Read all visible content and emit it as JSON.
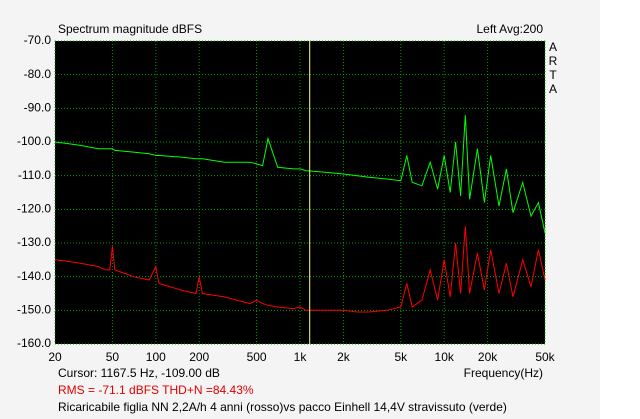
{
  "chart_data": {
    "type": "line",
    "title": "Spectrum magnitude dBFS",
    "channel_label": "Left  Avg:200",
    "logo": [
      "A",
      "R",
      "T",
      "A"
    ],
    "xlabel": "Frequency(Hz)",
    "cursor_text": "Cursor:  1167.5 Hz, -109.00 dB",
    "cursor_x": 1167.5,
    "cursor_color": "#ffff80",
    "rms_text": "RMS =  -71.1 dBFS    THD+N =84.43%",
    "caption": "Ricaricabile figlia NN 2,2A/h 4 anni (rosso)vs pacco Einhell 14,4V stravissuto (verde)",
    "xscale": "log",
    "grid": true,
    "xlim": [
      20,
      50000
    ],
    "ylim": [
      -160,
      -70
    ],
    "xticks": [
      20,
      50,
      100,
      200,
      500,
      {
        "value": 1000,
        "label": "1k"
      },
      {
        "value": 2000,
        "label": "2k"
      },
      {
        "value": 5000,
        "label": "5k"
      },
      {
        "value": 10000,
        "label": "10k"
      },
      {
        "value": 20000,
        "label": "20k"
      },
      {
        "value": 50000,
        "label": "50k"
      }
    ],
    "yticks": [
      {
        "value": -70,
        "label": "-70.0"
      },
      {
        "value": -80,
        "label": "-80.0"
      },
      {
        "value": -90,
        "label": "-90.0"
      },
      {
        "value": -100,
        "label": "-100.0"
      },
      {
        "value": -110,
        "label": "-110.0"
      },
      {
        "value": -120,
        "label": "-120.0"
      },
      {
        "value": -130,
        "label": "-130.0"
      },
      {
        "value": -140,
        "label": "-140.0"
      },
      {
        "value": -150,
        "label": "-150.0"
      },
      {
        "value": -160,
        "label": "-160.0"
      }
    ],
    "x": [
      20,
      25,
      30,
      40,
      45,
      48,
      50,
      52,
      70,
      90,
      100,
      105,
      150,
      190,
      200,
      210,
      300,
      450,
      500,
      550,
      600,
      700,
      900,
      1000,
      1100,
      1500,
      2000,
      2500,
      3000,
      4000,
      5000,
      5500,
      6000,
      7000,
      8000,
      9000,
      10000,
      11000,
      12000,
      13000,
      14000,
      15000,
      17000,
      19000,
      21000,
      24000,
      27000,
      30000,
      35000,
      40000,
      45000,
      50000
    ],
    "series": [
      {
        "color": "#00ff00",
        "values": [
          -100,
          -100.5,
          -101,
          -102,
          -102,
          -102,
          -102,
          -102.5,
          -103,
          -103.5,
          -104,
          -104,
          -104.5,
          -105,
          -105,
          -105,
          -106,
          -106,
          -106.5,
          -107,
          -99,
          -107.5,
          -108,
          -108,
          -108.5,
          -109,
          -109.5,
          -110,
          -110.5,
          -111,
          -111.5,
          -104,
          -112,
          -113,
          -106,
          -114,
          -104,
          -115,
          -100,
          -116,
          -92,
          -117,
          -102,
          -118,
          -104,
          -119,
          -108,
          -121,
          -112,
          -122,
          -118,
          -127
        ]
      },
      {
        "color": "#ff0000",
        "values": [
          -135,
          -135.5,
          -136,
          -137,
          -138,
          -138,
          -131,
          -138,
          -140,
          -141,
          -137,
          -142,
          -144,
          -145,
          -140,
          -145,
          -146,
          -148,
          -147,
          -148,
          -148.5,
          -149,
          -149.5,
          -149,
          -150,
          -150,
          -150,
          -150.5,
          -150.5,
          -150,
          -149,
          -142,
          -149,
          -147,
          -138,
          -147,
          -135,
          -146,
          -130,
          -145,
          -125,
          -145,
          -133,
          -144,
          -132,
          -145,
          -136,
          -146,
          -135,
          -143,
          -132,
          -141
        ]
      }
    ]
  }
}
